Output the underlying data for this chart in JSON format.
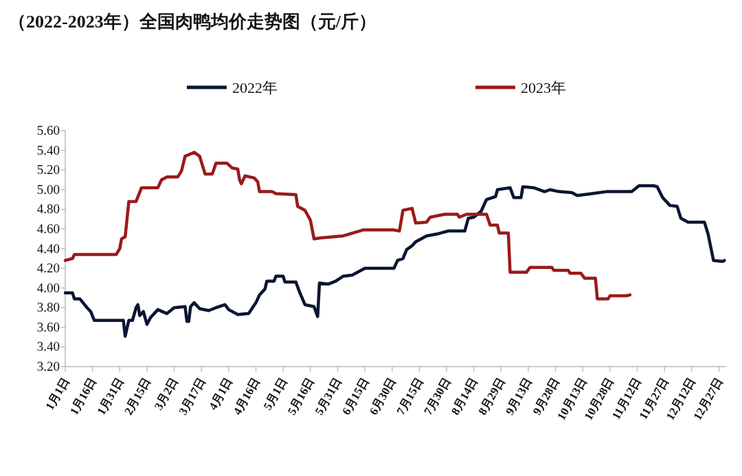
{
  "chart_data": {
    "type": "line",
    "title": "（2022-2023年）全国肉鸭均价走势图（元/斤）",
    "xlim": [
      "--01-01",
      "--12-31"
    ],
    "xticks": [
      {
        "value": "--01-01",
        "label": "1月1日"
      },
      {
        "value": "--01-16",
        "label": "1月16日"
      },
      {
        "value": "--01-31",
        "label": "1月31日"
      },
      {
        "value": "--02-15",
        "label": "2月15日"
      },
      {
        "value": "--03-02",
        "label": "3月2日"
      },
      {
        "value": "--03-17",
        "label": "3月17日"
      },
      {
        "value": "--04-01",
        "label": "4月1日"
      },
      {
        "value": "--04-16",
        "label": "4月16日"
      },
      {
        "value": "--05-01",
        "label": "5月1日"
      },
      {
        "value": "--05-16",
        "label": "5月16日"
      },
      {
        "value": "--05-31",
        "label": "5月31日"
      },
      {
        "value": "--06-15",
        "label": "6月15日"
      },
      {
        "value": "--06-30",
        "label": "6月30日"
      },
      {
        "value": "--07-15",
        "label": "7月15日"
      },
      {
        "value": "--07-30",
        "label": "7月30日"
      },
      {
        "value": "--08-14",
        "label": "8月14日"
      },
      {
        "value": "--08-29",
        "label": "8月29日"
      },
      {
        "value": "--09-13",
        "label": "9月13日"
      },
      {
        "value": "--09-28",
        "label": "9月28日"
      },
      {
        "value": "--10-13",
        "label": "10月13日"
      },
      {
        "value": "--10-28",
        "label": "10月28日"
      },
      {
        "value": "--11-12",
        "label": "11月12日"
      },
      {
        "value": "--11-27",
        "label": "11月27日"
      },
      {
        "value": "--12-12",
        "label": "12月12日"
      },
      {
        "value": "--12-27",
        "label": "12月27日"
      }
    ],
    "ylim": [
      3.2,
      5.6
    ],
    "yticks": [
      {
        "value": 3.2,
        "label": "3.20"
      },
      {
        "value": 3.4,
        "label": "3.40"
      },
      {
        "value": 3.6,
        "label": "3.60"
      },
      {
        "value": 3.8,
        "label": "3.80"
      },
      {
        "value": 4.0,
        "label": "4.00"
      },
      {
        "value": 4.2,
        "label": "4.20"
      },
      {
        "value": 4.4,
        "label": "4.40"
      },
      {
        "value": 4.6,
        "label": "4.60"
      },
      {
        "value": 4.8,
        "label": "4.80"
      },
      {
        "value": 5.0,
        "label": "5.00"
      },
      {
        "value": 5.2,
        "label": "5.20"
      },
      {
        "value": 5.4,
        "label": "5.40"
      },
      {
        "value": 5.6,
        "label": "5.60"
      }
    ],
    "grid": false,
    "legend": "top",
    "marker": "none",
    "line_style": "solid",
    "series": [
      {
        "name": "2022年",
        "color": "#0b1533",
        "x": [
          "--01-01",
          "--01-05",
          "--01-06",
          "--01-09",
          "--01-13",
          "--01-15",
          "--01-17",
          "--02-02",
          "--02-03",
          "--02-05",
          "--02-07",
          "--02-09",
          "--02-10",
          "--02-11",
          "--02-13",
          "--02-15",
          "--02-17",
          "--02-21",
          "--02-26",
          "--03-02",
          "--03-08",
          "--03-09",
          "--03-10",
          "--03-11",
          "--03-13",
          "--03-16",
          "--03-21",
          "--03-25",
          "--03-30",
          "--04-01",
          "--04-06",
          "--04-12",
          "--04-16",
          "--04-18",
          "--04-21",
          "--04-22",
          "--04-26",
          "--04-27",
          "--05-01",
          "--05-02",
          "--05-08",
          "--05-10",
          "--05-13",
          "--05-18",
          "--05-20",
          "--05-21",
          "--05-26",
          "--05-30",
          "--06-03",
          "--06-08",
          "--06-15",
          "--07-01",
          "--07-03",
          "--07-06",
          "--07-08",
          "--07-11",
          "--07-13",
          "--07-19",
          "--07-25",
          "--07-27",
          "--07-31",
          "--08-09",
          "--08-11",
          "--08-14",
          "--08-18",
          "--08-21",
          "--08-26",
          "--08-27",
          "--09-03",
          "--09-05",
          "--09-09",
          "--09-10",
          "--09-16",
          "--09-22",
          "--09-25",
          "--09-30",
          "--10-07",
          "--10-10",
          "--10-18",
          "--10-26",
          "--11-09",
          "--11-13",
          "--11-21",
          "--11-23",
          "--11-26",
          "--11-30",
          "--12-04",
          "--12-06",
          "--12-10",
          "--12-19",
          "--12-21",
          "--12-22",
          "--12-24",
          "--12-29",
          "--12-30"
        ],
        "values": [
          3.95,
          3.95,
          3.89,
          3.89,
          3.8,
          3.76,
          3.67,
          3.67,
          3.51,
          3.67,
          3.67,
          3.8,
          3.83,
          3.72,
          3.76,
          3.63,
          3.7,
          3.78,
          3.74,
          3.8,
          3.81,
          3.66,
          3.66,
          3.81,
          3.85,
          3.79,
          3.77,
          3.8,
          3.83,
          3.78,
          3.73,
          3.74,
          3.85,
          3.93,
          3.99,
          4.07,
          4.07,
          4.12,
          4.12,
          4.06,
          4.06,
          3.96,
          3.83,
          3.81,
          3.71,
          4.05,
          4.04,
          4.07,
          4.12,
          4.13,
          4.2,
          4.2,
          4.28,
          4.3,
          4.39,
          4.43,
          4.47,
          4.53,
          4.55,
          4.56,
          4.58,
          4.58,
          4.71,
          4.72,
          4.78,
          4.9,
          4.93,
          5.0,
          5.02,
          4.92,
          4.92,
          5.03,
          5.02,
          4.98,
          5.0,
          4.98,
          4.97,
          4.94,
          4.96,
          4.98,
          4.98,
          5.04,
          5.04,
          5.03,
          4.92,
          4.84,
          4.83,
          4.71,
          4.67,
          4.67,
          4.55,
          4.46,
          4.28,
          4.27,
          4.28
        ]
      },
      {
        "name": "2023年",
        "color": "#9a1a1a",
        "x": [
          "--01-01",
          "--01-05",
          "--01-06",
          "--01-29",
          "--01-31",
          "--02-01",
          "--02-03",
          "--02-05",
          "--02-09",
          "--02-12",
          "--02-21",
          "--02-23",
          "--02-26",
          "--03-04",
          "--03-06",
          "--03-08",
          "--03-13",
          "--03-16",
          "--03-19",
          "--03-23",
          "--03-25",
          "--03-31",
          "--04-03",
          "--04-06",
          "--04-07",
          "--04-08",
          "--04-10",
          "--04-15",
          "--04-17",
          "--04-18",
          "--04-25",
          "--04-27",
          "--05-08",
          "--05-09",
          "--05-13",
          "--05-16",
          "--05-18",
          "--05-22",
          "--06-03",
          "--06-14",
          "--07-01",
          "--07-04",
          "--07-06",
          "--07-11",
          "--07-13",
          "--07-19",
          "--07-21",
          "--07-29",
          "--08-05",
          "--08-06",
          "--08-10",
          "--08-21",
          "--08-23",
          "--08-27",
          "--08-28",
          "--09-02",
          "--09-03",
          "--09-12",
          "--09-14",
          "--09-26",
          "--09-27",
          "--10-05",
          "--10-06",
          "--10-12",
          "--10-14",
          "--10-20",
          "--10-21",
          "--10-27",
          "--10-28",
          "--11-06",
          "--11-08"
        ],
        "values": [
          4.28,
          4.3,
          4.34,
          4.34,
          4.4,
          4.5,
          4.52,
          4.88,
          4.88,
          5.02,
          5.02,
          5.1,
          5.13,
          5.13,
          5.19,
          5.34,
          5.38,
          5.34,
          5.16,
          5.16,
          5.27,
          5.27,
          5.22,
          5.21,
          5.1,
          5.06,
          5.14,
          5.12,
          5.08,
          4.98,
          4.98,
          4.96,
          4.95,
          4.83,
          4.79,
          4.69,
          4.5,
          4.51,
          4.53,
          4.59,
          4.59,
          4.58,
          4.79,
          4.81,
          4.66,
          4.67,
          4.72,
          4.75,
          4.75,
          4.72,
          4.75,
          4.75,
          4.64,
          4.64,
          4.56,
          4.56,
          4.16,
          4.16,
          4.21,
          4.21,
          4.18,
          4.18,
          4.15,
          4.15,
          4.1,
          4.1,
          3.89,
          3.89,
          3.92,
          3.92,
          3.93
        ]
      }
    ]
  }
}
